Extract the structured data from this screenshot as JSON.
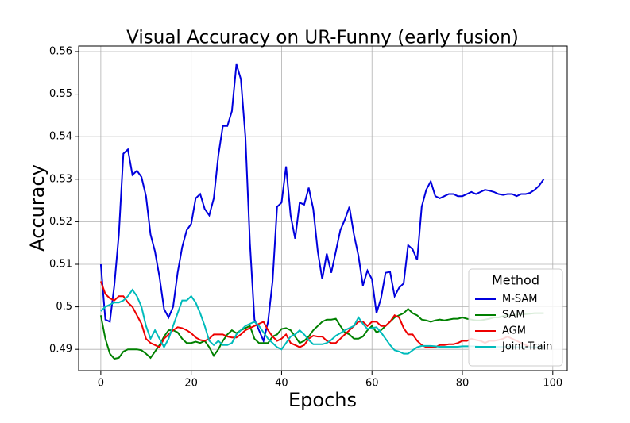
{
  "chart_data": {
    "type": "line",
    "title": "Visual Accuracy on UR-Funny (early fusion)",
    "x_label": "Epochs",
    "y_label": "Accuracy",
    "x": [
      0,
      1,
      2,
      3,
      4,
      5,
      6,
      7,
      8,
      9,
      10,
      11,
      12,
      13,
      14,
      15,
      16,
      17,
      18,
      19,
      20,
      21,
      22,
      23,
      24,
      25,
      26,
      27,
      28,
      29,
      30,
      31,
      32,
      33,
      34,
      35,
      36,
      37,
      38,
      39,
      40,
      41,
      42,
      43,
      44,
      45,
      46,
      47,
      48,
      49,
      50,
      51,
      52,
      53,
      54,
      55,
      56,
      57,
      58,
      59,
      60,
      61,
      62,
      63,
      64,
      65,
      66,
      67,
      68,
      69,
      70,
      71,
      72,
      73,
      74,
      75,
      76,
      77,
      78,
      79,
      80,
      81,
      82,
      83,
      84,
      85,
      86,
      87,
      88,
      89,
      90,
      91,
      92,
      93,
      94,
      95,
      96,
      97,
      98
    ],
    "series": [
      {
        "name": "M-SAM",
        "color": "#0000dd",
        "values": [
          0.51,
          0.497,
          0.4965,
          0.505,
          0.517,
          0.536,
          0.537,
          0.531,
          0.532,
          0.5305,
          0.526,
          0.517,
          0.513,
          0.507,
          0.4995,
          0.4975,
          0.5,
          0.508,
          0.514,
          0.518,
          0.5195,
          0.5255,
          0.5265,
          0.523,
          0.5215,
          0.5255,
          0.5355,
          0.5425,
          0.5425,
          0.546,
          0.557,
          0.5535,
          0.54,
          0.515,
          0.497,
          0.4945,
          0.492,
          0.4965,
          0.506,
          0.5235,
          0.5245,
          0.533,
          0.5215,
          0.516,
          0.5245,
          0.524,
          0.528,
          0.523,
          0.513,
          0.5065,
          0.5125,
          0.508,
          0.513,
          0.518,
          0.5205,
          0.5235,
          0.517,
          0.512,
          0.505,
          0.5085,
          0.5065,
          0.4985,
          0.502,
          0.508,
          0.5082,
          0.5025,
          0.5045,
          0.5055,
          0.5145,
          0.5135,
          0.511,
          0.5235,
          0.5275,
          0.5295,
          0.526,
          0.5255,
          0.526,
          0.5265,
          0.5265,
          0.526,
          0.526,
          0.5265,
          0.527,
          0.5265,
          0.527,
          0.5275,
          0.5273,
          0.527,
          0.5265,
          0.5263,
          0.5265,
          0.5265,
          0.526,
          0.5265,
          0.5265,
          0.5268,
          0.5275,
          0.5285,
          0.53
        ]
      },
      {
        "name": "SAM",
        "color": "#008000",
        "values": [
          0.498,
          0.4925,
          0.489,
          0.4878,
          0.488,
          0.4895,
          0.49,
          0.49,
          0.49,
          0.4898,
          0.489,
          0.488,
          0.4895,
          0.491,
          0.493,
          0.4945,
          0.4945,
          0.494,
          0.4925,
          0.4915,
          0.4915,
          0.4918,
          0.4915,
          0.492,
          0.4905,
          0.4885,
          0.49,
          0.492,
          0.4935,
          0.4945,
          0.4938,
          0.4945,
          0.495,
          0.4955,
          0.4925,
          0.4915,
          0.4915,
          0.4915,
          0.493,
          0.4935,
          0.4948,
          0.495,
          0.4945,
          0.493,
          0.4915,
          0.492,
          0.493,
          0.4945,
          0.4955,
          0.4965,
          0.497,
          0.497,
          0.4972,
          0.4955,
          0.494,
          0.4935,
          0.4925,
          0.4925,
          0.493,
          0.4945,
          0.4955,
          0.494,
          0.4945,
          0.4955,
          0.4965,
          0.4975,
          0.498,
          0.4985,
          0.4995,
          0.4985,
          0.498,
          0.497,
          0.4968,
          0.4965,
          0.4968,
          0.497,
          0.4968,
          0.497,
          0.4972,
          0.4972,
          0.4975,
          0.4972,
          0.497,
          0.4968,
          0.4968,
          0.497,
          0.4972,
          0.4975,
          0.4975,
          0.4978,
          0.498,
          0.498,
          0.4982,
          0.4982,
          0.4983,
          0.4984,
          0.4985,
          0.4985,
          0.4985
        ]
      },
      {
        "name": "AGM",
        "color": "#ee0000",
        "values": [
          0.506,
          0.503,
          0.502,
          0.5015,
          0.5025,
          0.5025,
          0.501,
          0.5,
          0.498,
          0.496,
          0.4925,
          0.4915,
          0.491,
          0.4905,
          0.4925,
          0.4935,
          0.4945,
          0.4952,
          0.495,
          0.4945,
          0.4938,
          0.4928,
          0.4922,
          0.492,
          0.4925,
          0.4935,
          0.4935,
          0.4935,
          0.493,
          0.4928,
          0.4928,
          0.4935,
          0.4945,
          0.495,
          0.4955,
          0.496,
          0.4965,
          0.4945,
          0.493,
          0.492,
          0.4925,
          0.4935,
          0.4915,
          0.491,
          0.4905,
          0.491,
          0.4925,
          0.4932,
          0.493,
          0.493,
          0.492,
          0.4915,
          0.4915,
          0.4925,
          0.4935,
          0.4945,
          0.4955,
          0.4965,
          0.4965,
          0.4955,
          0.4965,
          0.4965,
          0.4955,
          0.4955,
          0.4965,
          0.498,
          0.4975,
          0.495,
          0.4935,
          0.4935,
          0.492,
          0.491,
          0.4905,
          0.4905,
          0.4905,
          0.491,
          0.491,
          0.4912,
          0.4912,
          0.4915,
          0.492,
          0.492,
          0.4925,
          0.4922,
          0.492,
          0.4915,
          0.492,
          0.492,
          0.4922,
          0.4925,
          0.493,
          0.4925,
          0.492,
          0.4915,
          0.491,
          0.4905,
          0.4905,
          0.4905,
          0.4905
        ]
      },
      {
        "name": "Joint-Train",
        "color": "#00bbbb",
        "values": [
          0.499,
          0.5,
          0.5005,
          0.501,
          0.501,
          0.5015,
          0.5025,
          0.504,
          0.5025,
          0.5,
          0.4955,
          0.4925,
          0.4945,
          0.4925,
          0.4905,
          0.4925,
          0.4955,
          0.4985,
          0.5015,
          0.5015,
          0.5025,
          0.501,
          0.4985,
          0.4955,
          0.492,
          0.491,
          0.492,
          0.491,
          0.491,
          0.4915,
          0.4935,
          0.4945,
          0.4955,
          0.496,
          0.4965,
          0.4955,
          0.494,
          0.4925,
          0.4915,
          0.4905,
          0.49,
          0.4915,
          0.493,
          0.4935,
          0.4945,
          0.4935,
          0.4922,
          0.4912,
          0.4912,
          0.4912,
          0.4915,
          0.4922,
          0.4932,
          0.4938,
          0.4945,
          0.495,
          0.4955,
          0.4975,
          0.496,
          0.4948,
          0.495,
          0.4952,
          0.494,
          0.4925,
          0.491,
          0.4898,
          0.4895,
          0.489,
          0.489,
          0.4898,
          0.4905,
          0.4908,
          0.4908,
          0.4908,
          0.4907,
          0.4906,
          0.4906,
          0.4906,
          0.4906,
          0.4906,
          0.4907,
          0.4907,
          0.4907,
          0.4907,
          0.4906,
          0.4906,
          0.4906,
          0.4906,
          0.4906,
          0.4906,
          0.4906,
          0.4906,
          0.4905,
          0.4905,
          0.4905,
          0.4905,
          0.4905,
          0.4905,
          0.4905
        ]
      }
    ],
    "xlim": [
      -4.9,
      103.2
    ],
    "xticks": [
      0,
      20,
      40,
      60,
      80,
      100
    ],
    "ylim": [
      0.485,
      0.5613
    ],
    "yticks": [
      0.49,
      0.5,
      {
        "value": 0.51,
        "label": "0.51"
      },
      0.52,
      0.53,
      0.54,
      0.55,
      0.56
    ],
    "grid": true,
    "legend_title": "Method",
    "legend_position": "lower right"
  }
}
